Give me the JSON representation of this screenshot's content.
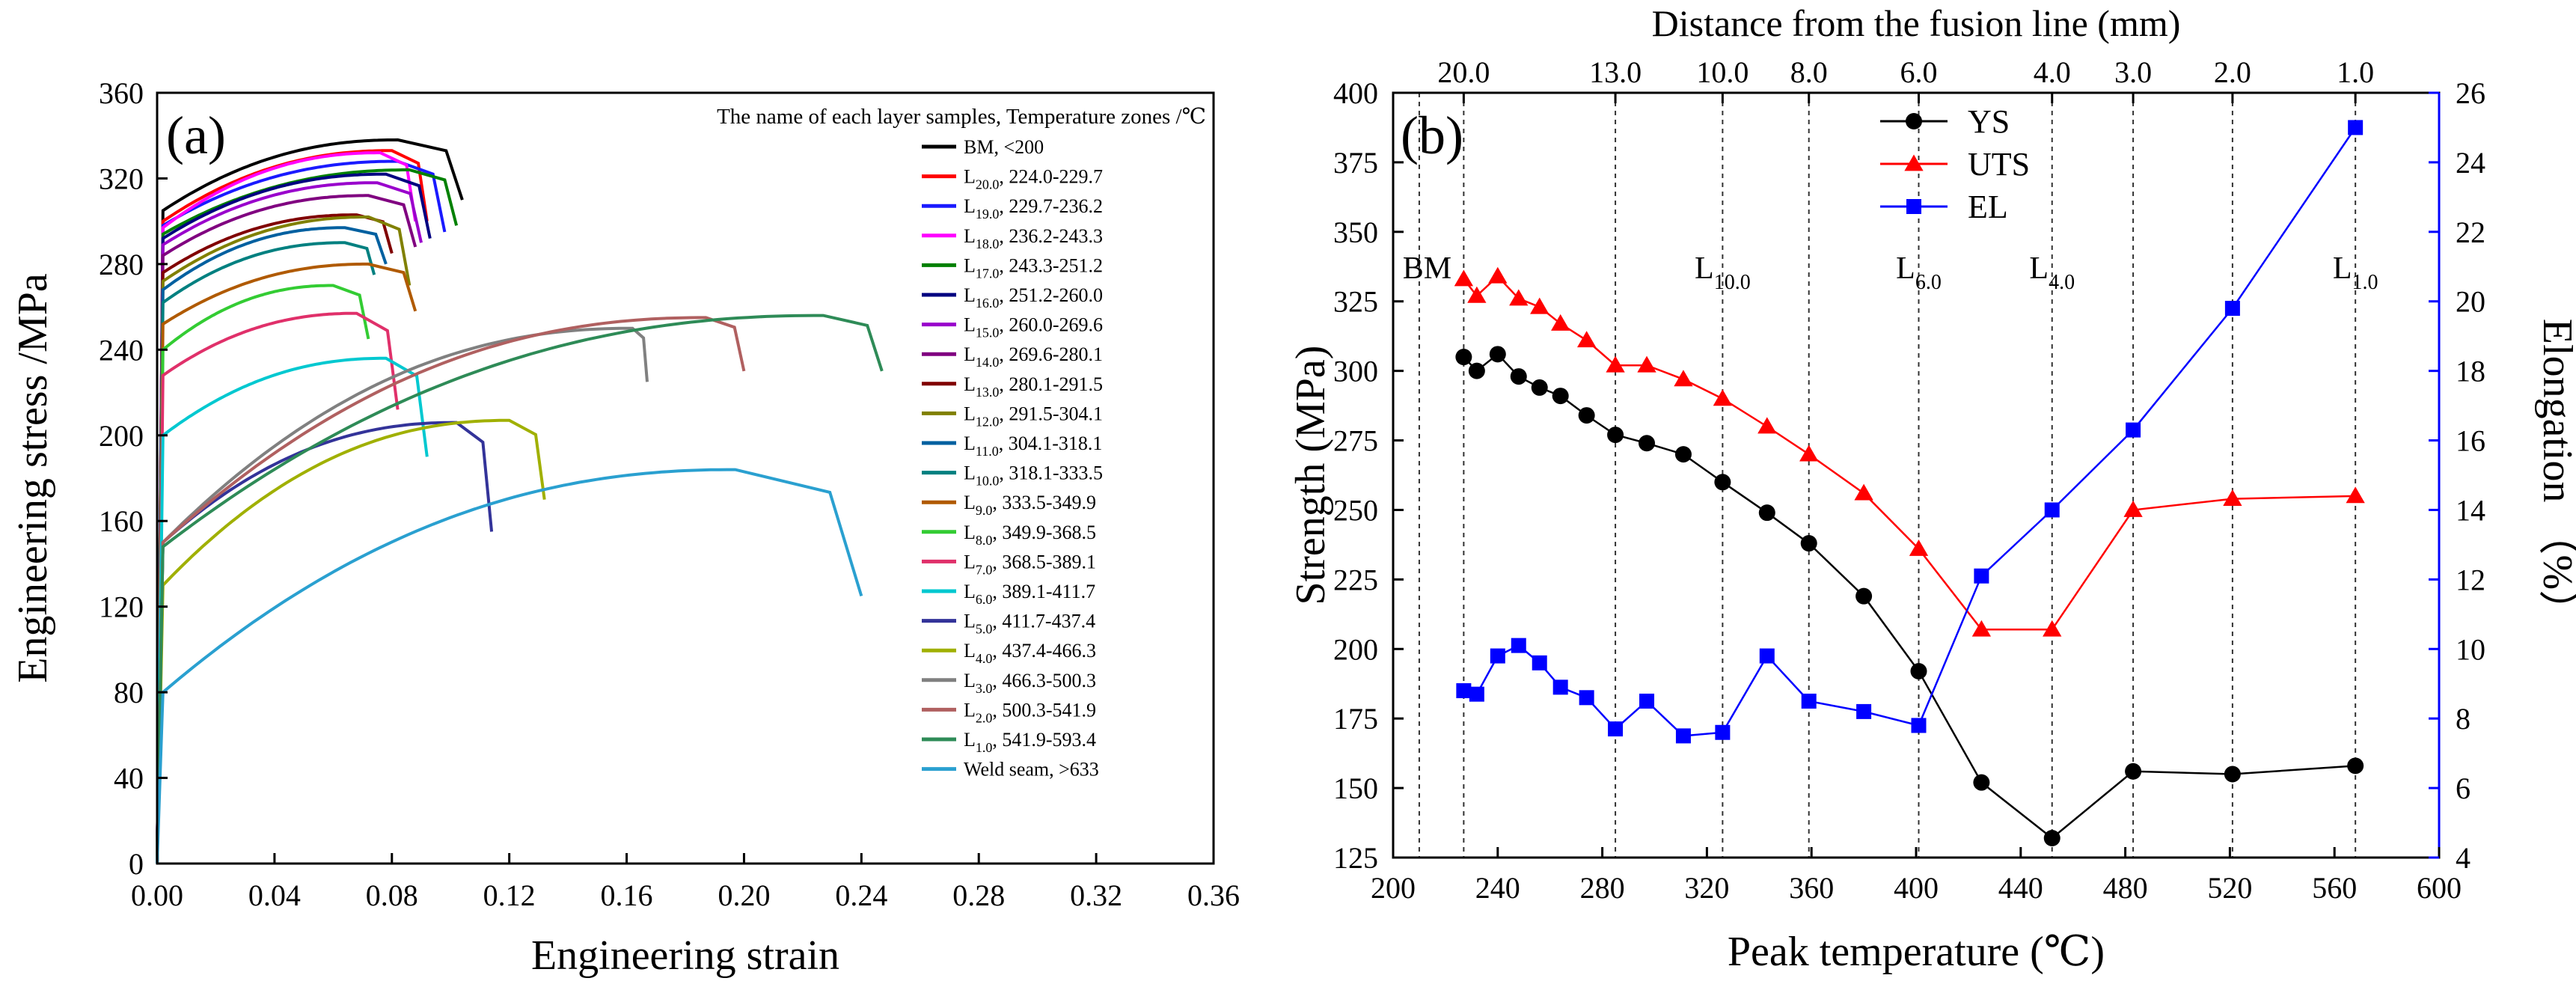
{
  "chart_data": [
    {
      "type": "line",
      "panel_label": "(a)",
      "title": "",
      "xlabel": "Engineering strain",
      "ylabel": "Engineering stress /MPa",
      "xlim": [
        0,
        0.36
      ],
      "ylim": [
        0,
        360
      ],
      "xticks": [
        "0.00",
        "0.04",
        "0.08",
        "0.12",
        "0.16",
        "0.20",
        "0.24",
        "0.28",
        "0.32",
        "0.36"
      ],
      "yticks": [
        "0",
        "40",
        "80",
        "120",
        "160",
        "200",
        "240",
        "280",
        "320",
        "360"
      ],
      "legend_title": "The name of each layer samples, Temperature zones /℃",
      "legend_position": "top-right",
      "series": [
        {
          "name": "BM",
          "sub": "",
          "range": ",   <200",
          "color": "#000000",
          "start": 305,
          "peak": 338,
          "eu": 0.08,
          "ef": 0.102,
          "fail": 310
        },
        {
          "name": "L",
          "sub": "20.0",
          "range": ",  224.0-229.7",
          "color": "#ff0000",
          "start": 300,
          "peak": 333,
          "eu": 0.078,
          "ef": 0.09,
          "fail": 300
        },
        {
          "name": "L",
          "sub": "19.0",
          "range": ",  229.7-236.2",
          "color": "#1a1aff",
          "start": 298,
          "peak": 328,
          "eu": 0.08,
          "ef": 0.096,
          "fail": 295
        },
        {
          "name": "L",
          "sub": "18.0",
          "range": ",  236.2-243.3",
          "color": "#ff00ff",
          "start": 297,
          "peak": 332,
          "eu": 0.074,
          "ef": 0.086,
          "fail": 300
        },
        {
          "name": "L",
          "sub": "17.0",
          "range": ",  243.3-251.2",
          "color": "#008000",
          "start": 294,
          "peak": 324,
          "eu": 0.084,
          "ef": 0.1,
          "fail": 298
        },
        {
          "name": "L",
          "sub": "16.0",
          "range": ",  251.2-260.0",
          "color": "#000080",
          "start": 292,
          "peak": 322,
          "eu": 0.076,
          "ef": 0.091,
          "fail": 292
        },
        {
          "name": "L",
          "sub": "15.0",
          "range": ",  260.0-269.6",
          "color": "#9900cc",
          "start": 289,
          "peak": 318,
          "eu": 0.073,
          "ef": 0.088,
          "fail": 290
        },
        {
          "name": "L",
          "sub": "14.0",
          "range": ",  269.6-280.1",
          "color": "#800080",
          "start": 284,
          "peak": 312,
          "eu": 0.07,
          "ef": 0.086,
          "fail": 288
        },
        {
          "name": "L",
          "sub": "13.0",
          "range": ",  280.1-291.5",
          "color": "#800000",
          "start": 276,
          "peak": 303,
          "eu": 0.066,
          "ef": 0.078,
          "fail": 285
        },
        {
          "name": "L",
          "sub": "12.0",
          "range": ",  291.5-304.1",
          "color": "#808000",
          "start": 272,
          "peak": 302,
          "eu": 0.07,
          "ef": 0.084,
          "fail": 270
        },
        {
          "name": "L",
          "sub": "11.0",
          "range": ",  304.1-318.1",
          "color": "#0060a0",
          "start": 268,
          "peak": 297,
          "eu": 0.062,
          "ef": 0.076,
          "fail": 280
        },
        {
          "name": "L",
          "sub": "10.0",
          "range": ",  318.1-333.5",
          "color": "#008080",
          "start": 262,
          "peak": 290,
          "eu": 0.062,
          "ef": 0.072,
          "fail": 275
        },
        {
          "name": "L",
          "sub": "9.0",
          "range": ",  333.5-349.9",
          "color": "#b05a00",
          "start": 252,
          "peak": 280,
          "eu": 0.07,
          "ef": 0.086,
          "fail": 258
        },
        {
          "name": "L",
          "sub": "8.0",
          "range": ",  349.9-368.5",
          "color": "#33cc33",
          "start": 240,
          "peak": 270,
          "eu": 0.058,
          "ef": 0.07,
          "fail": 245
        },
        {
          "name": "L",
          "sub": "7.0",
          "range": ",  368.5-389.1",
          "color": "#e0306a",
          "start": 228,
          "peak": 257,
          "eu": 0.066,
          "ef": 0.08,
          "fail": 212
        },
        {
          "name": "L",
          "sub": "6.0",
          "range": ",  389.1-411.7",
          "color": "#00c8d0",
          "start": 200,
          "peak": 236,
          "eu": 0.076,
          "ef": 0.09,
          "fail": 190
        },
        {
          "name": "L",
          "sub": "5.0",
          "range": ",  411.7-437.4",
          "color": "#333399",
          "start": 150,
          "peak": 206,
          "eu": 0.1,
          "ef": 0.112,
          "fail": 155
        },
        {
          "name": "L",
          "sub": "4.0",
          "range": ",  437.4-466.3",
          "color": "#a0b000",
          "start": 130,
          "peak": 207,
          "eu": 0.118,
          "ef": 0.13,
          "fail": 170
        },
        {
          "name": "L",
          "sub": "3.0",
          "range": ",  466.3-500.3",
          "color": "#808080",
          "start": 150,
          "peak": 250,
          "eu": 0.16,
          "ef": 0.165,
          "fail": 225
        },
        {
          "name": "L",
          "sub": "2.0",
          "range": ",  500.3-541.9",
          "color": "#b06060",
          "start": 150,
          "peak": 255,
          "eu": 0.185,
          "ef": 0.198,
          "fail": 230
        },
        {
          "name": "L",
          "sub": "1.0",
          "range": ",  541.9-593.4",
          "color": "#2e8b57",
          "start": 148,
          "peak": 256,
          "eu": 0.225,
          "ef": 0.245,
          "fail": 230
        },
        {
          "name": "Weld seam, >633",
          "sub": "",
          "range": "",
          "color": "#2aa0d0",
          "start": 80,
          "peak": 184,
          "eu": 0.195,
          "ef": 0.238,
          "fail": 125
        }
      ]
    },
    {
      "type": "line",
      "panel_label": "(b)",
      "title": "",
      "xlabel": "Peak temperature (℃)",
      "ylabel": "Strength (MPa)",
      "y2label": "Elongation （%）",
      "top_xlabel": "Distance from the fusion line (mm)",
      "xlim": [
        200,
        600
      ],
      "ylim": [
        125,
        400
      ],
      "y2lim": [
        4,
        26
      ],
      "xticks": [
        "200",
        "240",
        "280",
        "320",
        "360",
        "400",
        "440",
        "480",
        "520",
        "560",
        "600"
      ],
      "yticks": [
        "125",
        "150",
        "175",
        "200",
        "225",
        "250",
        "275",
        "300",
        "325",
        "350",
        "375",
        "400"
      ],
      "y2ticks": [
        "4",
        "6",
        "8",
        "10",
        "12",
        "14",
        "16",
        "18",
        "20",
        "22",
        "24",
        "26"
      ],
      "top_ticks": [
        {
          "label": "20.0",
          "x": 227
        },
        {
          "label": "13.0",
          "x": 285
        },
        {
          "label": "10.0",
          "x": 326
        },
        {
          "label": "8.0",
          "x": 359
        },
        {
          "label": "6.0",
          "x": 401
        },
        {
          "label": "4.0",
          "x": 452
        },
        {
          "label": "3.0",
          "x": 483
        },
        {
          "label": "2.0",
          "x": 521
        },
        {
          "label": "1.0",
          "x": 568
        }
      ],
      "guide_lines": [
        210,
        227,
        285,
        326,
        359,
        401,
        452,
        483,
        521,
        568
      ],
      "zone_labels": [
        {
          "text": "BM",
          "sub": "",
          "x": 213
        },
        {
          "text": "L",
          "sub": "10.0",
          "x": 326
        },
        {
          "text": "L",
          "sub": "6.0",
          "x": 401
        },
        {
          "text": "L",
          "sub": "4.0",
          "x": 452
        },
        {
          "text": "L",
          "sub": "1.0",
          "x": 568
        }
      ],
      "legend_position": "top-center",
      "series": [
        {
          "name": "YS",
          "color": "#000000",
          "marker": "circle",
          "axis": "left",
          "x": [
            227,
            232,
            240,
            248,
            256,
            264,
            274,
            285,
            297,
            311,
            326,
            343,
            359,
            380,
            401,
            425,
            452,
            483,
            521,
            568
          ],
          "y": [
            305,
            300,
            306,
            298,
            294,
            291,
            284,
            277,
            274,
            270,
            260,
            249,
            238,
            219,
            192,
            152,
            132,
            156,
            155,
            158
          ]
        },
        {
          "name": "UTS",
          "color": "#ff0000",
          "marker": "triangle",
          "axis": "left",
          "x": [
            227,
            232,
            240,
            248,
            256,
            264,
            274,
            285,
            297,
            311,
            326,
            343,
            359,
            380,
            401,
            425,
            452,
            483,
            521,
            568
          ],
          "y": [
            333,
            327,
            334,
            326,
            323,
            317,
            311,
            302,
            302,
            297,
            290,
            280,
            270,
            256,
            236,
            207,
            207,
            250,
            254,
            255
          ]
        },
        {
          "name": "EL",
          "color": "#0000ff",
          "marker": "square",
          "axis": "right",
          "x": [
            227,
            232,
            240,
            248,
            256,
            264,
            274,
            285,
            297,
            311,
            326,
            343,
            359,
            380,
            401,
            425,
            452,
            483,
            521,
            568
          ],
          "y": [
            8.8,
            8.7,
            9.8,
            10.1,
            9.6,
            8.9,
            8.6,
            7.7,
            8.5,
            7.5,
            7.6,
            9.8,
            8.5,
            8.2,
            7.8,
            12.1,
            14.0,
            16.3,
            19.8,
            25.0
          ]
        }
      ]
    }
  ]
}
